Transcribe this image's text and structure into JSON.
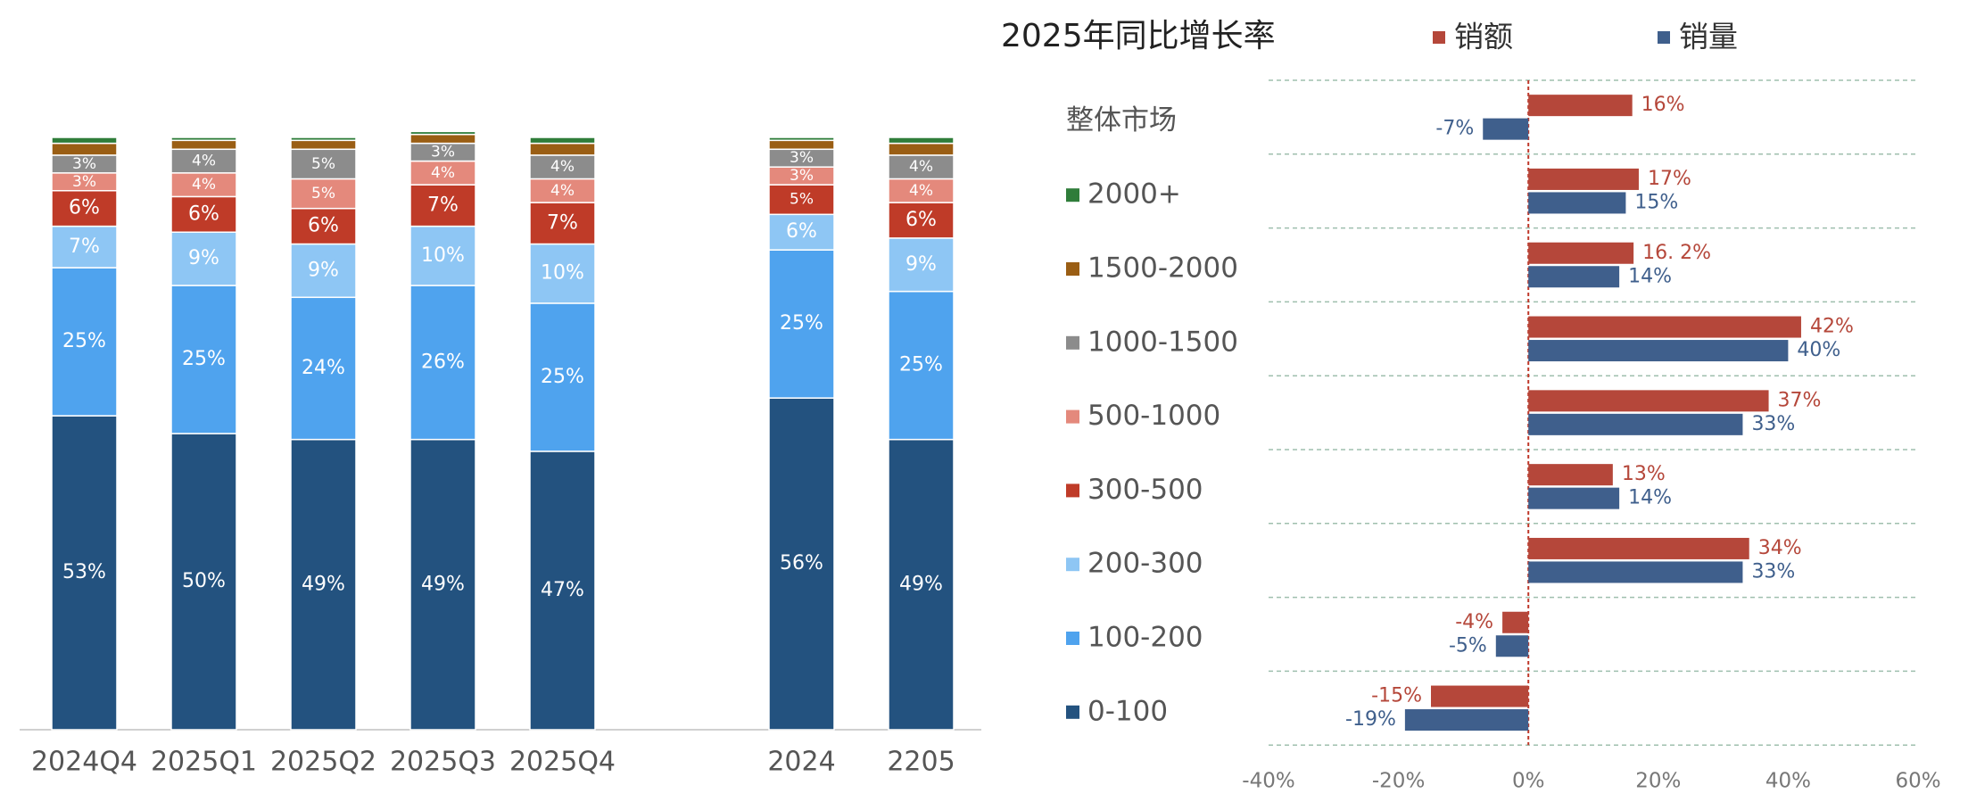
{
  "chart_data": [
    {
      "type": "stacked_bar",
      "categories": [
        "2024Q4",
        "2025Q1",
        "2025Q2",
        "2025Q3",
        "2025Q4",
        null,
        "2024",
        "2205"
      ],
      "ylim": [
        0,
        100
      ],
      "series": [
        {
          "name": "0-100",
          "color": "#23527f",
          "values": [
            53,
            50,
            49,
            49,
            47,
            null,
            56,
            49
          ],
          "value_labels": [
            "53%",
            "50%",
            "49%",
            "49%",
            "47%",
            null,
            "56%",
            "49%"
          ]
        },
        {
          "name": "100-200",
          "color": "#4fa3ee",
          "values": [
            25,
            25,
            24,
            26,
            25,
            null,
            25,
            25
          ],
          "value_labels": [
            "25%",
            "25%",
            "24%",
            "26%",
            "25%",
            null,
            "25%",
            "25%"
          ]
        },
        {
          "name": "200-300",
          "color": "#8ec6f4",
          "values": [
            7,
            9,
            9,
            10,
            10,
            null,
            6,
            9
          ],
          "value_labels": [
            "7%",
            "9%",
            "9%",
            "10%",
            "10%",
            null,
            "6%",
            "9%"
          ]
        },
        {
          "name": "300-500",
          "color": "#bf3b28",
          "values": [
            6,
            6,
            6,
            7,
            7,
            null,
            5,
            6
          ],
          "value_labels": [
            "6%",
            "6%",
            "6%",
            "7%",
            "7%",
            null,
            "5%",
            "6%"
          ]
        },
        {
          "name": "500-1000",
          "color": "#e4897c",
          "values": [
            3,
            4,
            5,
            4,
            4,
            null,
            3,
            4
          ],
          "value_labels": [
            "3%",
            "4%",
            "5%",
            "4%",
            "4%",
            null,
            "3%",
            "4%"
          ]
        },
        {
          "name": "1000-1500",
          "color": "#8c8c8c",
          "values": [
            3,
            4,
            5,
            3,
            4,
            null,
            3,
            4
          ],
          "value_labels": [
            "3%",
            "4%",
            "5%",
            "3%",
            "4%",
            null,
            "3%",
            "4%"
          ]
        },
        {
          "name": "1500-2000",
          "color": "#9a5e14",
          "values": [
            2,
            1.5,
            1.5,
            1.5,
            2,
            null,
            1.5,
            2
          ],
          "value_labels": [
            null,
            null,
            null,
            null,
            null,
            null,
            null,
            null
          ]
        },
        {
          "name": "2000+",
          "color": "#2f7d3a",
          "values": [
            1,
            0.5,
            0.5,
            0.5,
            1,
            null,
            0.5,
            1
          ],
          "value_labels": [
            null,
            null,
            null,
            null,
            null,
            null,
            null,
            null
          ]
        }
      ]
    },
    {
      "type": "hbar",
      "title": "2025年同比增长率",
      "legend": "top",
      "categories": [
        "整体市场",
        "2000+",
        "1500-2000",
        "1000-1500",
        "500-1000",
        "300-500",
        "200-300",
        "100-200",
        "0-100"
      ],
      "xlim": [
        -40,
        60
      ],
      "xticks": [
        {
          "value": -40,
          "label": "-40%"
        },
        {
          "value": -20,
          "label": "-20%"
        },
        {
          "value": 0,
          "label": "0%"
        },
        {
          "value": 20,
          "label": "20%"
        },
        {
          "value": 40,
          "label": "40%"
        },
        {
          "value": 60,
          "label": "60%"
        }
      ],
      "series": [
        {
          "name": "销额",
          "color": "#b5473a",
          "values": [
            16,
            17,
            16.2,
            42,
            37,
            13,
            34,
            -4,
            -15
          ],
          "value_labels": [
            "16%",
            "17%",
            "16. 2%",
            "42%",
            "37%",
            "13%",
            "34%",
            "-4%",
            "-15%"
          ]
        },
        {
          "name": "销量",
          "color": "#3f5f8c",
          "values": [
            -7,
            15,
            14,
            40,
            33,
            14,
            33,
            -5,
            -19
          ],
          "value_labels": [
            "-7%",
            "15%",
            "14%",
            "40%",
            "33%",
            "14%",
            "33%",
            "-5%",
            "-19%"
          ]
        }
      ]
    }
  ]
}
